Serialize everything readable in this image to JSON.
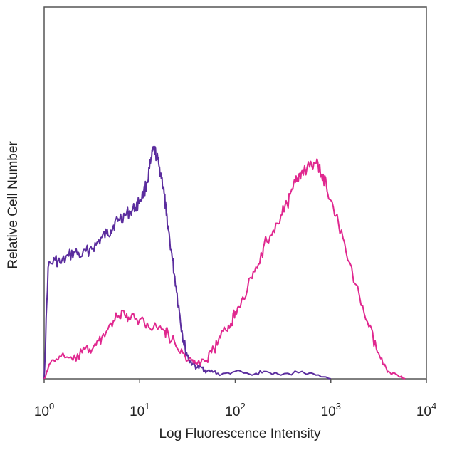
{
  "chart_data": {
    "type": "line",
    "title": "",
    "xlabel": "Log Fluorescence Intensity",
    "ylabel": "Relative Cell Number",
    "x_scale": "log",
    "xlim": [
      1,
      10000
    ],
    "ylim": [
      0,
      100
    ],
    "x_ticks": [
      {
        "base": "10",
        "exp": "0",
        "value": 1
      },
      {
        "base": "10",
        "exp": "1",
        "value": 10
      },
      {
        "base": "10",
        "exp": "2",
        "value": 100
      },
      {
        "base": "10",
        "exp": "3",
        "value": 1000
      },
      {
        "base": "10",
        "exp": "4",
        "value": 10000
      }
    ],
    "grid": false,
    "legend": "none",
    "series": [
      {
        "color": "#5b2d9e",
        "x": [
          1,
          1.1,
          1.3,
          1.5,
          1.8,
          2.1,
          2.5,
          3,
          3.5,
          4,
          4.5,
          5,
          5.5,
          6,
          7,
          8,
          9,
          10,
          11,
          12,
          13,
          14,
          15,
          16,
          17,
          18,
          19,
          20,
          22,
          24,
          26,
          28,
          30,
          33,
          36,
          40,
          45,
          50,
          60,
          70,
          100,
          150,
          200,
          300,
          500,
          700,
          1000
        ],
        "y": [
          0,
          30,
          32,
          31,
          33,
          34,
          33,
          35,
          36,
          38,
          39,
          40,
          42,
          43,
          44,
          45,
          46,
          48,
          50,
          53,
          58,
          62,
          60,
          57,
          54,
          50,
          44,
          40,
          32,
          25,
          18,
          12,
          8,
          5,
          4,
          3,
          3,
          2,
          2,
          1,
          2,
          1,
          2,
          1,
          2,
          1,
          0
        ]
      },
      {
        "color": "#e0288f",
        "x": [
          1,
          1.2,
          1.5,
          2,
          2.5,
          3,
          3.5,
          4,
          5,
          6,
          7,
          8,
          10,
          12,
          15,
          18,
          20,
          25,
          30,
          35,
          40,
          50,
          60,
          70,
          80,
          90,
          100,
          120,
          150,
          180,
          200,
          250,
          300,
          350,
          400,
          450,
          500,
          600,
          700,
          800,
          900,
          1000,
          1200,
          1500,
          2000,
          2500,
          3000,
          3500,
          4000,
          5000,
          6000
        ],
        "y": [
          0,
          5,
          6,
          5,
          7,
          8,
          9,
          11,
          15,
          17,
          17,
          16,
          16,
          15,
          14,
          13,
          12,
          8,
          6,
          5,
          4,
          5,
          8,
          11,
          13,
          15,
          18,
          22,
          27,
          31,
          36,
          40,
          44,
          47,
          51,
          54,
          56,
          57,
          58,
          55,
          52,
          48,
          42,
          32,
          22,
          14,
          8,
          4,
          2,
          1,
          0
        ]
      }
    ]
  }
}
